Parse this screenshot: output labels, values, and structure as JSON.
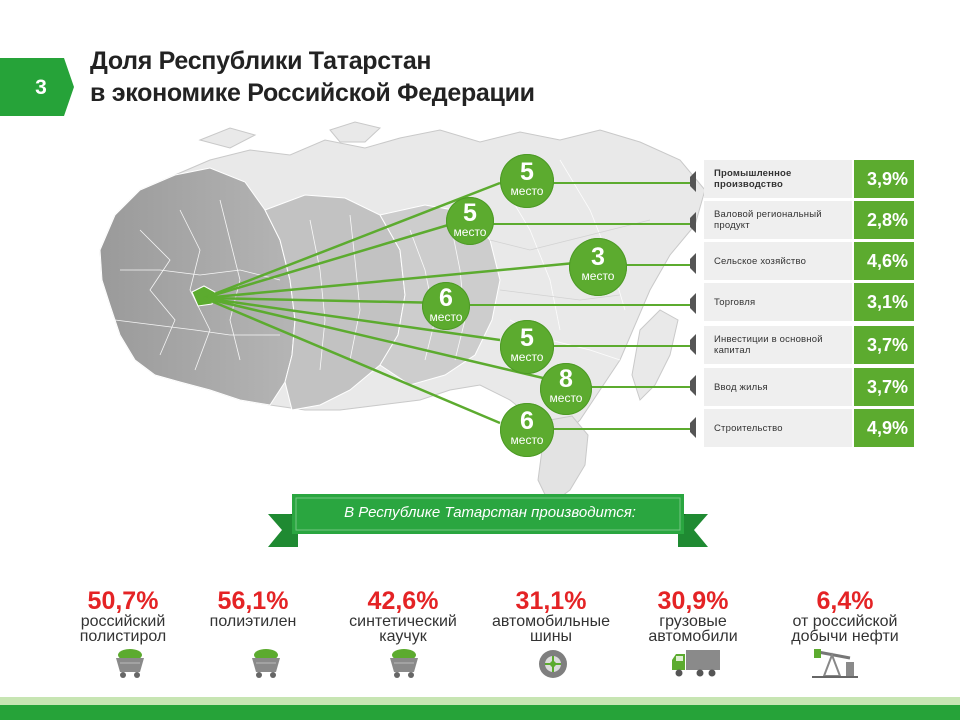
{
  "slide_number": "3",
  "title": {
    "line1": "Доля Республики Татарстан",
    "line2": "в экономике Российской Федерации"
  },
  "indicators": [
    {
      "label": "Промышленное производство",
      "value": "3,9%",
      "bold": true
    },
    {
      "label": "Валовой региональный продукт",
      "value": "2,8%",
      "bold": false
    },
    {
      "label": "Сельское хозяйство",
      "value": "4,6%",
      "bold": false
    },
    {
      "label": "Торговля",
      "value": "3,1%",
      "bold": false
    },
    {
      "label": "Инвестиции в основной капитал",
      "value": "3,7%",
      "bold": false
    },
    {
      "label": "Ввод жилья",
      "value": "3,7%",
      "bold": false
    },
    {
      "label": "Строительство",
      "value": "4,9%",
      "bold": false
    }
  ],
  "places": [
    {
      "rank": "5",
      "word": "место"
    },
    {
      "rank": "5",
      "word": "место"
    },
    {
      "rank": "3",
      "word": "место"
    },
    {
      "rank": "6",
      "word": "место"
    },
    {
      "rank": "5",
      "word": "место"
    },
    {
      "rank": "8",
      "word": "место"
    },
    {
      "rank": "6",
      "word": "место"
    }
  ],
  "banner": "В Республике Татарстан производится:",
  "products": [
    {
      "percent": "50,7%",
      "line1": "российский",
      "line2": "полистирол",
      "icon": "mine-cart-icon"
    },
    {
      "percent": "56,1%",
      "line1": "полиэтилен",
      "line2": "",
      "icon": "mine-cart-icon"
    },
    {
      "percent": "42,6%",
      "line1": "синтетический",
      "line2": "каучук",
      "icon": "mine-cart-icon"
    },
    {
      "percent": "31,1%",
      "line1": "автомобильные",
      "line2": "шины",
      "icon": "tire-icon"
    },
    {
      "percent": "30,9%",
      "line1": "грузовые",
      "line2": "автомобили",
      "icon": "truck-icon"
    },
    {
      "percent": "6,4%",
      "line1": "от российской",
      "line2": "добычи нефти",
      "icon": "oil-pump-icon"
    }
  ],
  "colors": {
    "accent": "#5cab2f",
    "dark_green": "#26a339",
    "percent_red": "#e42325"
  }
}
